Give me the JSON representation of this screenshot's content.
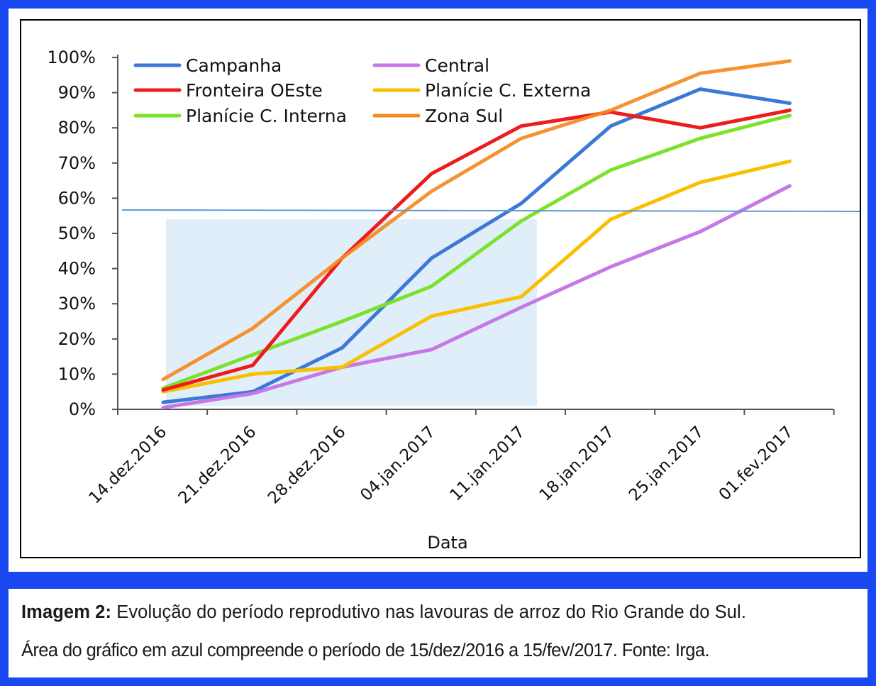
{
  "chart_data": {
    "type": "line",
    "xlabel": "Data",
    "ylabel": "",
    "ylim": [
      0,
      100
    ],
    "y_ticks": [
      "0%",
      "10%",
      "20%",
      "30%",
      "40%",
      "50%",
      "60%",
      "70%",
      "80%",
      "90%",
      "100%"
    ],
    "categories": [
      "14.dez.2016",
      "21.dez.2016",
      "28.dez.2016",
      "04.jan.2017",
      "11.jan.2017",
      "18.jan.2017",
      "25.jan.2017",
      "01.fev.2017"
    ],
    "series": [
      {
        "name": "Campanha",
        "color": "#3c78d8",
        "values": [
          2,
          5,
          17.5,
          43,
          58.5,
          80.5,
          91,
          87
        ]
      },
      {
        "name": "Central",
        "color": "#c678e6",
        "values": [
          0.5,
          4.5,
          12,
          17,
          29,
          40.5,
          50.5,
          63.5
        ]
      },
      {
        "name": "Fronteira OEste",
        "color": "#ee1c1c",
        "values": [
          5.5,
          12.5,
          43,
          67,
          80.5,
          84.5,
          80,
          85
        ]
      },
      {
        "name": "Planície C. Externa",
        "color": "#f8c000",
        "values": [
          5,
          10,
          12,
          26.5,
          32,
          54,
          64.5,
          70.5
        ]
      },
      {
        "name": "Planície C. Interna",
        "color": "#7be22a",
        "values": [
          6,
          15.5,
          25,
          35,
          53.5,
          68,
          77,
          83.5
        ]
      },
      {
        "name": "Zona Sul",
        "color": "#f58a1f",
        "values": [
          8.5,
          23,
          43,
          62,
          77,
          85,
          95.5,
          99
        ]
      }
    ],
    "reference_line": {
      "value": 56.5,
      "color": "#5b9bd5"
    },
    "highlight_band": {
      "from_index": 0,
      "to_index": 4,
      "y_from": 1,
      "y_to": 54,
      "color": "#dfeef8"
    },
    "legend_position": "top-left, inside plot"
  },
  "caption": {
    "label": "Imagem 2:",
    "line1": "Evolução do período reprodutivo nas lavouras de arroz do Rio Grande do Sul.",
    "line2": "Área do gráfico em azul compreende o período de 15/dez/2016 a 15/fev/2017. Fonte: Irga."
  }
}
